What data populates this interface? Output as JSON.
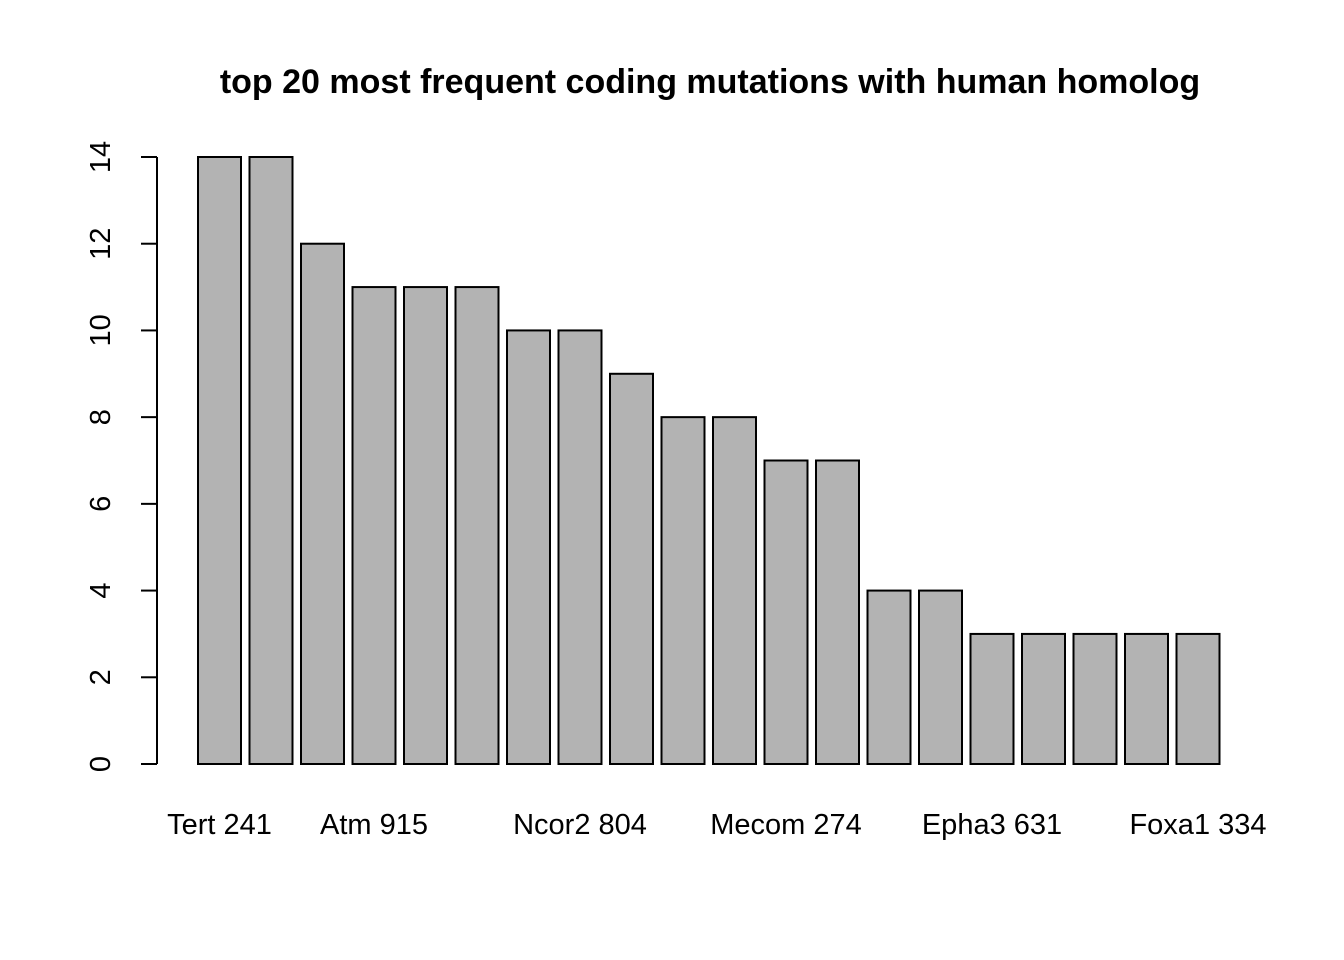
{
  "chart_data": {
    "type": "bar",
    "title": "top 20 most frequent coding mutations with human homolog",
    "xlabel": "",
    "ylabel": "",
    "ylim": [
      0,
      14
    ],
    "yticks": [
      0,
      2,
      4,
      6,
      8,
      10,
      12,
      14
    ],
    "grid": false,
    "legend": "none",
    "bar_color": "#b3b3b3",
    "bar_edge_color": "#000000",
    "values": [
      14,
      14,
      12,
      11,
      11,
      11,
      10,
      10,
      9,
      8,
      8,
      7,
      7,
      4,
      4,
      3,
      3,
      3,
      3,
      3
    ],
    "visible_category_labels": [
      {
        "index": 0,
        "label": "Tert 241"
      },
      {
        "index": 3,
        "label": "Atm 915"
      },
      {
        "index": 7,
        "label": "Ncor2 804"
      },
      {
        "index": 11,
        "label": "Mecom 274"
      },
      {
        "index": 15,
        "label": "Epha3 631"
      },
      {
        "index": 19,
        "label": "Foxa1 334"
      }
    ]
  }
}
